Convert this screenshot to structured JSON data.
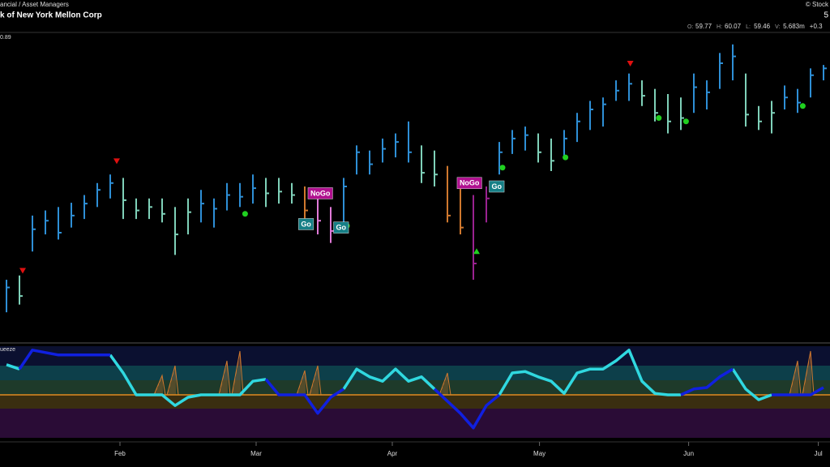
{
  "chart_data": {
    "type": "ohlc",
    "breadcrumb": "ancial / Asset Managers",
    "title": "k of New York Mellon Corp",
    "copyright": "© Stock",
    "corner_label": "5",
    "quote": [
      {
        "label": "O:",
        "value": "59.77"
      },
      {
        "label": "H:",
        "value": "60.07"
      },
      {
        "label": "L:",
        "value": "59.46"
      },
      {
        "label": "V:",
        "value": "5.683m"
      },
      {
        "value": "+0.3"
      }
    ],
    "price_label": "0.89",
    "x": [
      0,
      1,
      2,
      3,
      4,
      5,
      6,
      7,
      8,
      9,
      10,
      11,
      12,
      13,
      14,
      15,
      16,
      17,
      18,
      19,
      20,
      21,
      22,
      23,
      24,
      25,
      26,
      27,
      28,
      29,
      30,
      31,
      32,
      33,
      34,
      35,
      36,
      37,
      38,
      39,
      40,
      41,
      42,
      43,
      44,
      45,
      46,
      47,
      48,
      49,
      50,
      51,
      52,
      53,
      54,
      55,
      56,
      57,
      58,
      59,
      60,
      61,
      62,
      63
    ],
    "xlim": [
      -0.5,
      63.5
    ],
    "xticks": [
      {
        "value": 8.75,
        "label": "Feb"
      },
      {
        "value": 19.25,
        "label": "Mar"
      },
      {
        "value": 29.75,
        "label": "Apr"
      },
      {
        "value": 41.1,
        "label": "May"
      },
      {
        "value": 52.6,
        "label": "Jun"
      },
      {
        "value": 62.6,
        "label": "Jul"
      }
    ],
    "ylim": [
      43,
      61
    ],
    "high": [
      46.55,
      46.8,
      50.3,
      50.6,
      50.8,
      51.05,
      51.5,
      52.2,
      52.7,
      52.5,
      51.3,
      51.3,
      51.3,
      50.8,
      51.3,
      51.8,
      51.3,
      52.2,
      52.2,
      52.7,
      52.5,
      52.5,
      52.2,
      52.0,
      51.5,
      50.8,
      52.5,
      54.4,
      54.1,
      54.8,
      55.1,
      55.8,
      54.4,
      54.1,
      53.2,
      52.0,
      51.5,
      52.0,
      54.6,
      55.3,
      55.5,
      55.1,
      54.8,
      55.3,
      56.3,
      57.0,
      57.2,
      58.2,
      58.6,
      58.2,
      57.7,
      57.4,
      57.2,
      58.6,
      58.2,
      59.8,
      60.3,
      58.6,
      56.7,
      57.0,
      57.9,
      57.7,
      58.9,
      59.1
    ],
    "low": [
      44.65,
      45.1,
      48.2,
      49.2,
      48.9,
      49.6,
      50.1,
      50.8,
      51.3,
      50.1,
      50.1,
      50.1,
      49.9,
      48.0,
      49.2,
      49.9,
      49.6,
      50.6,
      50.8,
      51.0,
      50.8,
      51.0,
      51.0,
      50.1,
      49.2,
      48.7,
      49.4,
      52.7,
      52.7,
      53.4,
      53.7,
      53.4,
      52.2,
      52.0,
      49.9,
      49.2,
      46.55,
      49.9,
      52.7,
      53.9,
      54.1,
      53.4,
      52.9,
      53.7,
      54.6,
      55.3,
      55.5,
      57.0,
      57.0,
      56.7,
      55.8,
      55.1,
      55.3,
      56.3,
      56.5,
      57.7,
      58.2,
      55.5,
      55.3,
      55.1,
      56.5,
      56.3,
      57.2,
      58.2
    ],
    "close": [
      46.1,
      45.6,
      49.5,
      50.0,
      49.3,
      50.3,
      51.0,
      51.8,
      52.2,
      51.2,
      50.6,
      50.8,
      50.4,
      49.2,
      50.5,
      51.0,
      50.7,
      51.5,
      51.4,
      51.9,
      51.6,
      51.7,
      51.5,
      50.6,
      50.0,
      49.4,
      52.0,
      54.0,
      53.3,
      54.2,
      54.6,
      54.0,
      52.8,
      52.7,
      50.3,
      49.6,
      47.5,
      51.3,
      54.0,
      54.8,
      55.0,
      54.0,
      53.5,
      54.8,
      55.8,
      56.5,
      56.8,
      57.6,
      58.0,
      57.3,
      56.3,
      55.8,
      56.0,
      57.8,
      57.5,
      59.2,
      59.6,
      56.2,
      55.8,
      56.3,
      57.2,
      56.9,
      58.5,
      58.9
    ],
    "colors": [
      "#2e8fd6",
      "#7fd1b9",
      "#2e8fd6",
      "#2e8fd6",
      "#2e8fd6",
      "#2e8fd6",
      "#2e8fd6",
      "#2e8fd6",
      "#2e8fd6",
      "#7fd1b9",
      "#7fd1b9",
      "#7fd1b9",
      "#7fd1b9",
      "#7fd1b9",
      "#7fd1b9",
      "#2e8fd6",
      "#2e8fd6",
      "#2e8fd6",
      "#2e8fd6",
      "#2e8fd6",
      "#7fd1b9",
      "#7fd1b9",
      "#7fd1b9",
      "#d0782e",
      "#e07ad8",
      "#e07ad8",
      "#2e8fd6",
      "#2e8fd6",
      "#2e8fd6",
      "#2e8fd6",
      "#2e8fd6",
      "#2e8fd6",
      "#7fd1b9",
      "#7fd1b9",
      "#d0782e",
      "#d0782e",
      "#9a2290",
      "#9a2290",
      "#2e8fd6",
      "#2e8fd6",
      "#2e8fd6",
      "#7fd1b9",
      "#7fd1b9",
      "#2e8fd6",
      "#2e8fd6",
      "#2e8fd6",
      "#2e8fd6",
      "#2e8fd6",
      "#2e8fd6",
      "#7fd1b9",
      "#7fd1b9",
      "#7fd1b9",
      "#7fd1b9",
      "#2e8fd6",
      "#2e8fd6",
      "#2e8fd6",
      "#2e8fd6",
      "#7fd1b9",
      "#7fd1b9",
      "#7fd1b9",
      "#2e8fd6",
      "#2e8fd6",
      "#2e8fd6",
      "#2e8fd6"
    ],
    "markers": [
      {
        "x": 1.25,
        "y": 47.1,
        "shape": "down",
        "color": "#e01010"
      },
      {
        "x": 8.5,
        "y": 53.5,
        "shape": "down",
        "color": "#e01010"
      },
      {
        "x": 48.1,
        "y": 59.2,
        "shape": "down",
        "color": "#e01010"
      },
      {
        "x": 36.25,
        "y": 48.2,
        "shape": "up",
        "color": "#20d020"
      },
      {
        "x": 18.4,
        "y": 50.4,
        "shape": "dot",
        "color": "#20d020"
      },
      {
        "x": 26.25,
        "y": 49.7,
        "shape": "dot",
        "color": "#20d020"
      },
      {
        "x": 38.25,
        "y": 53.1,
        "shape": "dot",
        "color": "#20d020"
      },
      {
        "x": 43.1,
        "y": 53.7,
        "shape": "dot",
        "color": "#20d020"
      },
      {
        "x": 50.3,
        "y": 56.0,
        "shape": "dot",
        "color": "#20d020"
      },
      {
        "x": 52.4,
        "y": 55.8,
        "shape": "dot",
        "color": "#20d020"
      },
      {
        "x": 61.4,
        "y": 56.7,
        "shape": "dot",
        "color": "#20d020"
      }
    ],
    "annotations": [
      {
        "text": "NoGo",
        "x": 24.2,
        "y": 51.6,
        "color": "#b0108f"
      },
      {
        "text": "Go",
        "x": 23.1,
        "y": 49.8,
        "color": "#167f86"
      },
      {
        "text": "Go",
        "x": 25.8,
        "y": 49.6,
        "color": "#167f86"
      },
      {
        "text": "NoGo",
        "x": 35.7,
        "y": 52.2,
        "color": "#b0108f"
      },
      {
        "text": "Go",
        "x": 37.8,
        "y": 52.0,
        "color": "#167f86"
      }
    ],
    "oscillator": {
      "label": "ueeze",
      "ylim": [
        -80,
        100
      ],
      "baseline_color": "#e08a20",
      "squeeze_color": "#d0782e",
      "squeeze": [
        null,
        null,
        null,
        null,
        null,
        null,
        null,
        null,
        null,
        null,
        null,
        null,
        40,
        60,
        null,
        null,
        null,
        70,
        90,
        null,
        null,
        null,
        null,
        50,
        60,
        null,
        null,
        null,
        null,
        null,
        null,
        null,
        null,
        null,
        45,
        null,
        null,
        null,
        null,
        null,
        null,
        null,
        null,
        null,
        null,
        null,
        null,
        null,
        null,
        null,
        null,
        null,
        null,
        null,
        null,
        null,
        null,
        null,
        null,
        null,
        null,
        70,
        90,
        null
      ],
      "series": [
        {
          "color": "#30d8e0",
          "values": [
            62,
            53,
            null,
            null,
            null,
            null,
            null,
            null,
            82,
            45,
            0,
            0,
            0,
            -22,
            -5,
            0,
            0,
            0,
            0,
            28,
            32,
            null,
            null,
            null,
            null,
            null,
            12,
            53,
            37,
            28,
            53,
            28,
            37,
            12,
            null,
            null,
            null,
            null,
            0,
            45,
            48,
            37,
            28,
            3,
            45,
            53,
            53,
            70,
            92,
            28,
            3,
            0,
            0,
            null,
            null,
            null,
            53,
            12,
            -10,
            0,
            null,
            null,
            null,
            null
          ]
        },
        {
          "color": "#1020e0",
          "values": [
            null,
            53,
            92,
            87,
            82,
            82,
            82,
            82,
            82,
            null,
            null,
            null,
            null,
            null,
            null,
            null,
            null,
            null,
            null,
            null,
            32,
            0,
            0,
            0,
            -38,
            -5,
            12,
            null,
            null,
            null,
            null,
            null,
            null,
            12,
            -13,
            -38,
            -68,
            -22,
            0,
            null,
            null,
            null,
            null,
            null,
            null,
            null,
            null,
            null,
            null,
            null,
            null,
            null,
            0,
            12,
            15,
            37,
            53,
            null,
            null,
            0,
            0,
            0,
            0,
            15
          ]
        }
      ]
    }
  }
}
